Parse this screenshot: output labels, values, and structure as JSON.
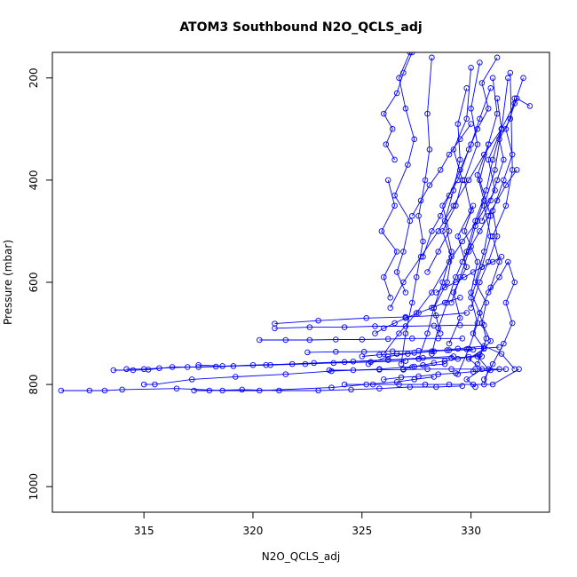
{
  "chart_data": {
    "type": "line",
    "title": "ATOM3 Southbound N2O_QCLS_adj",
    "xlabel": "N2O_QCLS_adj",
    "ylabel": "Pressure (mbar)",
    "xlim": [
      310.8,
      333.6
    ],
    "ylim": [
      1050,
      150
    ],
    "y_reversed": true,
    "x_ticks": [
      315,
      320,
      325,
      330
    ],
    "y_ticks": [
      200,
      400,
      600,
      800,
      1000
    ],
    "marker": "open-circle",
    "grid": false,
    "legend": "none",
    "color": "#0000ff",
    "series": [
      {
        "x": [
          330.2,
          329.8,
          330.5,
          329.9,
          330.6,
          330.1,
          330.4,
          330.0,
          330.3,
          329.7,
          330.1
        ],
        "y": [
          805,
          790,
          770,
          750,
          730,
          700,
          660,
          620,
          560,
          500,
          450
        ]
      },
      {
        "x": [
          330.6,
          330.8,
          330.3,
          330.9,
          330.5,
          330.7,
          330.2,
          330.6,
          330.9,
          330.4,
          330.8
        ],
        "y": [
          800,
          770,
          745,
          715,
          680,
          640,
          600,
          540,
          470,
          400,
          330
        ]
      },
      {
        "x": [
          311.2,
          312.5,
          313.2,
          314.0,
          316.5,
          318.6,
          320.3,
          323.6,
          325.2,
          326.6,
          327.4,
          328.3
        ],
        "y": [
          812,
          812,
          812,
          810,
          808,
          812,
          812,
          806,
          800,
          795,
          790,
          785
        ]
      },
      {
        "x": [
          317.3,
          318.0,
          319.5,
          321.2,
          323.0,
          324.5,
          325.8,
          327.2,
          328.4,
          329.6
        ],
        "y": [
          812,
          812,
          810,
          812,
          812,
          810,
          808,
          805,
          805,
          803
        ]
      },
      {
        "x": [
          313.6,
          314.5,
          315.2,
          316.3,
          317.5,
          319.1,
          320.6,
          322.8,
          324.6,
          326.2,
          327.8,
          329.2
        ],
        "y": [
          772,
          772,
          771,
          766,
          766,
          764,
          762,
          758,
          755,
          752,
          748,
          745
        ]
      },
      {
        "x": [
          314.2,
          315.0,
          315.7,
          317.0,
          318.3,
          320.0,
          321.8,
          323.7,
          325.4,
          327.0
        ],
        "y": [
          770,
          770,
          768,
          766,
          765,
          762,
          760,
          758,
          756,
          754
        ]
      },
      {
        "x": [
          315.0,
          315.5,
          317.2,
          319.2,
          321.5,
          323.6,
          325.8,
          327.4,
          328.8
        ],
        "y": [
          800,
          800,
          790,
          785,
          780,
          774,
          770,
          765,
          760
        ]
      },
      {
        "x": [
          317.5,
          318.6,
          320.8,
          322.4,
          324.2,
          326.2,
          327.6,
          329.1,
          330.5
        ],
        "y": [
          762,
          764,
          762,
          760,
          756,
          752,
          750,
          748,
          745
        ]
      },
      {
        "x": [
          320.3,
          321.5,
          322.6,
          323.8,
          325.0,
          326.2,
          327.3,
          328.5,
          329.6
        ],
        "y": [
          713,
          713,
          713,
          712,
          712,
          711,
          710,
          710,
          710
        ]
      },
      {
        "x": [
          321.0,
          322.6,
          324.2,
          325.6,
          327.0,
          328.3,
          329.5,
          330.6
        ],
        "y": [
          690,
          688,
          688,
          686,
          686,
          685,
          684,
          684
        ]
      },
      {
        "x": [
          321.0,
          323.0,
          325.2,
          327.0,
          328.4,
          329.8
        ],
        "y": [
          681,
          675,
          670,
          668,
          665,
          660
        ]
      },
      {
        "x": [
          322.5,
          323.8,
          325.1,
          326.4,
          327.6,
          328.9,
          330.1
        ],
        "y": [
          737,
          736,
          736,
          735,
          734,
          733,
          732
        ]
      },
      {
        "x": [
          323.5,
          324.6,
          325.8,
          326.9,
          328.0,
          329.1,
          330.2,
          331.3
        ],
        "y": [
          772,
          772,
          771,
          771,
          770,
          770,
          770,
          770
        ]
      },
      {
        "x": [
          324.2,
          325.5,
          326.7,
          327.9,
          329.0,
          330.1,
          331.0,
          332.2
        ],
        "y": [
          800,
          800,
          800,
          800,
          800,
          800,
          800,
          770
        ]
      },
      {
        "x": [
          325.3,
          326.2,
          327.1,
          328.3,
          329.4,
          330.6,
          331.4,
          332.0
        ],
        "y": [
          760,
          745,
          740,
          735,
          730,
          725,
          740,
          770
        ]
      },
      {
        "x": [
          326.0,
          326.7,
          327.5,
          328.2,
          329.0,
          329.6,
          330.3,
          331.1,
          330.8,
          331.4
        ],
        "y": [
          740,
          700,
          660,
          620,
          560,
          520,
          480,
          420,
          360,
          300
        ]
      },
      {
        "x": [
          326.3,
          326.9,
          327.7,
          328.5,
          329.2,
          329.9,
          330.6,
          331.4,
          332.0,
          332.4
        ],
        "y": [
          650,
          600,
          550,
          500,
          450,
          400,
          350,
          300,
          250,
          200
        ]
      },
      {
        "x": [
          326.8,
          327.0,
          327.3,
          327.5,
          327.8,
          327.6,
          327.9,
          328.1,
          328.0,
          328.2
        ],
        "y": [
          760,
          700,
          640,
          590,
          520,
          470,
          400,
          340,
          270,
          160
        ]
      },
      {
        "x": [
          327.0,
          326.6,
          326.9,
          327.2,
          326.5,
          327.1,
          327.4,
          327.0,
          326.7,
          327.2
        ],
        "y": [
          620,
          580,
          540,
          480,
          430,
          370,
          320,
          260,
          200,
          150
        ]
      },
      {
        "x": [
          326.5,
          326.1,
          326.4,
          326.0,
          326.6,
          326.9,
          327.3
        ],
        "y": [
          360,
          330,
          300,
          270,
          230,
          190,
          150
        ]
      },
      {
        "x": [
          326.2,
          326.5,
          325.9,
          326.6,
          326.0,
          326.3
        ],
        "y": [
          400,
          450,
          500,
          540,
          590,
          630
        ]
      },
      {
        "x": [
          327.6,
          328.0,
          328.3,
          328.7,
          329.1,
          328.8,
          329.2,
          329.5,
          329.4,
          329.8
        ],
        "y": [
          750,
          700,
          650,
          600,
          540,
          480,
          420,
          360,
          290,
          220
        ]
      },
      {
        "x": [
          328.2,
          328.5,
          328.9,
          329.3,
          329.8,
          330.2,
          330.7,
          331.0,
          331.4,
          331.2
        ],
        "y": [
          740,
          690,
          640,
          590,
          540,
          480,
          420,
          360,
          300,
          240
        ]
      },
      {
        "x": [
          328.6,
          328.3,
          328.9,
          329.1,
          328.7,
          329.3,
          329.6,
          329.2,
          329.8,
          330.0
        ],
        "y": [
          700,
          650,
          600,
          550,
          500,
          450,
          400,
          340,
          280,
          180
        ]
      },
      {
        "x": [
          329.0,
          329.5,
          329.2,
          329.8,
          329.4,
          330.0,
          329.7,
          330.3,
          330.0,
          330.4
        ],
        "y": [
          720,
          670,
          620,
          570,
          510,
          460,
          400,
          330,
          260,
          170
        ]
      },
      {
        "x": [
          329.4,
          329.9,
          330.3,
          330.0,
          330.5,
          330.9,
          330.6,
          331.1,
          331.4,
          331.7
        ],
        "y": [
          780,
          730,
          680,
          630,
          570,
          510,
          450,
          380,
          300,
          200
        ]
      },
      {
        "x": [
          330.0,
          330.4,
          330.8,
          331.2,
          331.0,
          331.5,
          331.9,
          331.6,
          332.1,
          332.7
        ],
        "y": [
          650,
          600,
          560,
          510,
          460,
          400,
          350,
          300,
          240,
          255
        ]
      },
      {
        "x": [
          330.3,
          330.7,
          330.4,
          330.9,
          331.3,
          331.0,
          331.6,
          331.9,
          331.8
        ],
        "y": [
          760,
          710,
          660,
          610,
          560,
          510,
          450,
          380,
          190
        ]
      },
      {
        "x": [
          330.8,
          331.3,
          331.7,
          332.0,
          331.6,
          331.9,
          331.5,
          331.0,
          330.6
        ],
        "y": [
          620,
          590,
          560,
          600,
          640,
          680,
          720,
          760,
          790
        ]
      },
      {
        "x": [
          327.8,
          328.2,
          328.6,
          329.0,
          329.5,
          330.0,
          330.4,
          330.9
        ],
        "y": [
          550,
          500,
          470,
          430,
          380,
          330,
          280,
          220
        ]
      },
      {
        "x": [
          325.6,
          326.0,
          326.5,
          327.0,
          327.6,
          328.2,
          328.8,
          329.5
        ],
        "y": [
          700,
          690,
          680,
          670,
          660,
          650,
          640,
          630
        ]
      },
      {
        "x": [
          325.0,
          325.8,
          326.6,
          327.4,
          328.2,
          329.0,
          329.8,
          330.6,
          331.3
        ],
        "y": [
          745,
          742,
          740,
          738,
          735,
          733,
          731,
          729,
          727
        ]
      },
      {
        "x": [
          326.0,
          326.8,
          327.6,
          328.5,
          329.3,
          330.1,
          330.9,
          331.6
        ],
        "y": [
          790,
          786,
          784,
          780,
          778,
          775,
          772,
          770
        ]
      },
      {
        "x": [
          328.0,
          328.5,
          329.0,
          328.7,
          329.4,
          329.9,
          330.3,
          330.8,
          330.5,
          331.2
        ],
        "y": [
          580,
          540,
          500,
          450,
          400,
          340,
          300,
          260,
          210,
          160
        ]
      },
      {
        "x": [
          329.1,
          329.5,
          329.9,
          330.2,
          330.6,
          330.3,
          330.8,
          331.2,
          331.0
        ],
        "y": [
          640,
          590,
          540,
          490,
          440,
          390,
          330,
          270,
          200
        ]
      },
      {
        "x": [
          330.5,
          330.9,
          331.2,
          331.5,
          331.3,
          331.8,
          332.0
        ],
        "y": [
          480,
          440,
          400,
          360,
          320,
          280,
          240
        ]
      },
      {
        "x": [
          328.4,
          328.8,
          329.3,
          329.7,
          330.1,
          330.5,
          331.0,
          331.4
        ],
        "y": [
          620,
          610,
          600,
          590,
          580,
          570,
          560,
          550
        ]
      },
      {
        "x": [
          327.3,
          327.7,
          328.1,
          328.6,
          329.0,
          329.5,
          330.0
        ],
        "y": [
          470,
          440,
          410,
          380,
          350,
          320,
          290
        ]
      },
      {
        "x": [
          329.6,
          330.0,
          330.4,
          330.8,
          331.2,
          331.6,
          332.1
        ],
        "y": [
          560,
          530,
          500,
          470,
          440,
          410,
          380
        ]
      },
      {
        "x": [
          326.9,
          327.3,
          327.8,
          328.3,
          328.8,
          329.4,
          329.9,
          330.4
        ],
        "y": [
          770,
          766,
          762,
          758,
          754,
          750,
          746,
          742
        ]
      }
    ]
  }
}
